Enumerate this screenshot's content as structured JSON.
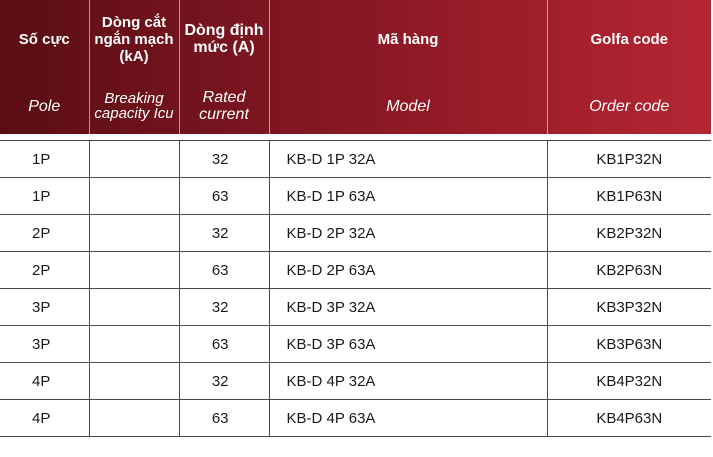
{
  "header": {
    "top": {
      "pole": "Số cực",
      "breaking": "Dòng cắt ngắn mạch (kA)",
      "rated": "Dòng định mức (A)",
      "model": "Mã hàng",
      "code": "Golfa code"
    },
    "sub": {
      "pole": "Pole",
      "breaking": "Breaking capacity Icu",
      "rated": "Rated current",
      "model": "Model",
      "code": "Order code"
    }
  },
  "rows": [
    {
      "pole": "1P",
      "breaking": "",
      "current": "32",
      "model": "KB-D 1P 32A",
      "code": "KB1P32N"
    },
    {
      "pole": "1P",
      "breaking": "",
      "current": "63",
      "model": "KB-D 1P 63A",
      "code": "KB1P63N"
    },
    {
      "pole": "2P",
      "breaking": "",
      "current": "32",
      "model": "KB-D 2P 32A",
      "code": "KB2P32N"
    },
    {
      "pole": "2P",
      "breaking": "",
      "current": "63",
      "model": "KB-D 2P 63A",
      "code": "KB2P63N"
    },
    {
      "pole": "3P",
      "breaking": "",
      "current": "32",
      "model": "KB-D 3P 32A",
      "code": "KB3P32N"
    },
    {
      "pole": "3P",
      "breaking": "",
      "current": "63",
      "model": "KB-D 3P 63A",
      "code": "KB3P63N"
    },
    {
      "pole": "4P",
      "breaking": "",
      "current": "32",
      "model": "KB-D 4P 32A",
      "code": "KB4P32N"
    },
    {
      "pole": "4P",
      "breaking": "",
      "current": "63",
      "model": "KB-D 4P 63A",
      "code": "KB4P63N"
    }
  ],
  "colors": {
    "header_dark": "#5a0d13",
    "header_light": "#b52633",
    "grid": "#4a4a4a"
  }
}
